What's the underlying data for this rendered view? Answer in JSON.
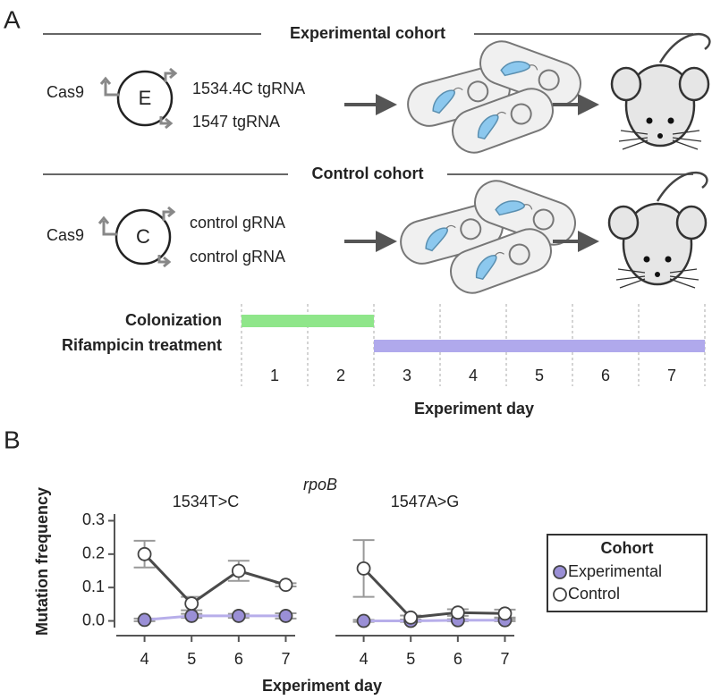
{
  "panel_a": {
    "label": "A",
    "experimental": {
      "title": "Experimental cohort",
      "protein": "Cas9",
      "plasmid": "E",
      "guides": [
        "1534.4C tgRNA",
        "1547 tgRNA"
      ]
    },
    "control": {
      "title": "Control cohort",
      "protein": "Cas9",
      "plasmid": "C",
      "guides": [
        "control gRNA",
        "control gRNA"
      ]
    },
    "timeline": {
      "days": [
        1,
        2,
        3,
        4,
        5,
        6,
        7
      ],
      "xlabel": "Experiment day",
      "bars": [
        {
          "name": "Colonization",
          "start": 1,
          "end": 2,
          "color": "#8fe68a"
        },
        {
          "name": "Rifampicin treatment",
          "start": 3,
          "end": 7,
          "color": "#b0a9ec"
        }
      ]
    }
  },
  "panel_b": {
    "label": "B",
    "gene": "rpoB",
    "ylabel": "Mutation frequency",
    "xlabel": "Experiment day",
    "legend_title": "Cohort"
  },
  "chart_data": [
    {
      "type": "line",
      "title": "1534T>C",
      "x": [
        4,
        5,
        6,
        7
      ],
      "xlim": [
        3.4,
        7.2
      ],
      "xticks": [
        4,
        5,
        6,
        7
      ],
      "ylim": [
        -0.02,
        0.32
      ],
      "yticks": [
        {
          "value": 0,
          "label": "0.0"
        },
        0.1,
        0.2,
        0.3
      ],
      "series": [
        {
          "name": "Experimental",
          "color": "#9a8fd6",
          "line_color": "#b7aeea",
          "values": [
            0.003,
            0.015,
            0.015,
            0.015
          ],
          "errors": [
            0.004,
            0.006,
            0.006,
            0.008
          ]
        },
        {
          "name": "Control",
          "color": "#ffffff",
          "line_color": "#4a4a4a",
          "values": [
            0.2,
            0.052,
            0.15,
            0.108
          ],
          "errors": [
            0.04,
            0.02,
            0.03,
            0.005
          ]
        }
      ]
    },
    {
      "type": "line",
      "title": "1547A>G",
      "x": [
        4,
        5,
        6,
        7
      ],
      "xlim": [
        3.4,
        7.2
      ],
      "xticks": [
        4,
        5,
        6,
        7
      ],
      "ylim": [
        -0.02,
        0.32
      ],
      "series": [
        {
          "name": "Experimental",
          "color": "#9a8fd6",
          "line_color": "#b7aeea",
          "values": [
            0.0,
            0.0,
            0.002,
            0.002
          ],
          "errors": [
            0.003,
            0.003,
            0.003,
            0.003
          ]
        },
        {
          "name": "Control",
          "color": "#ffffff",
          "line_color": "#4a4a4a",
          "values": [
            0.157,
            0.01,
            0.025,
            0.022
          ],
          "errors": [
            0.085,
            0.006,
            0.01,
            0.012
          ]
        }
      ]
    }
  ]
}
